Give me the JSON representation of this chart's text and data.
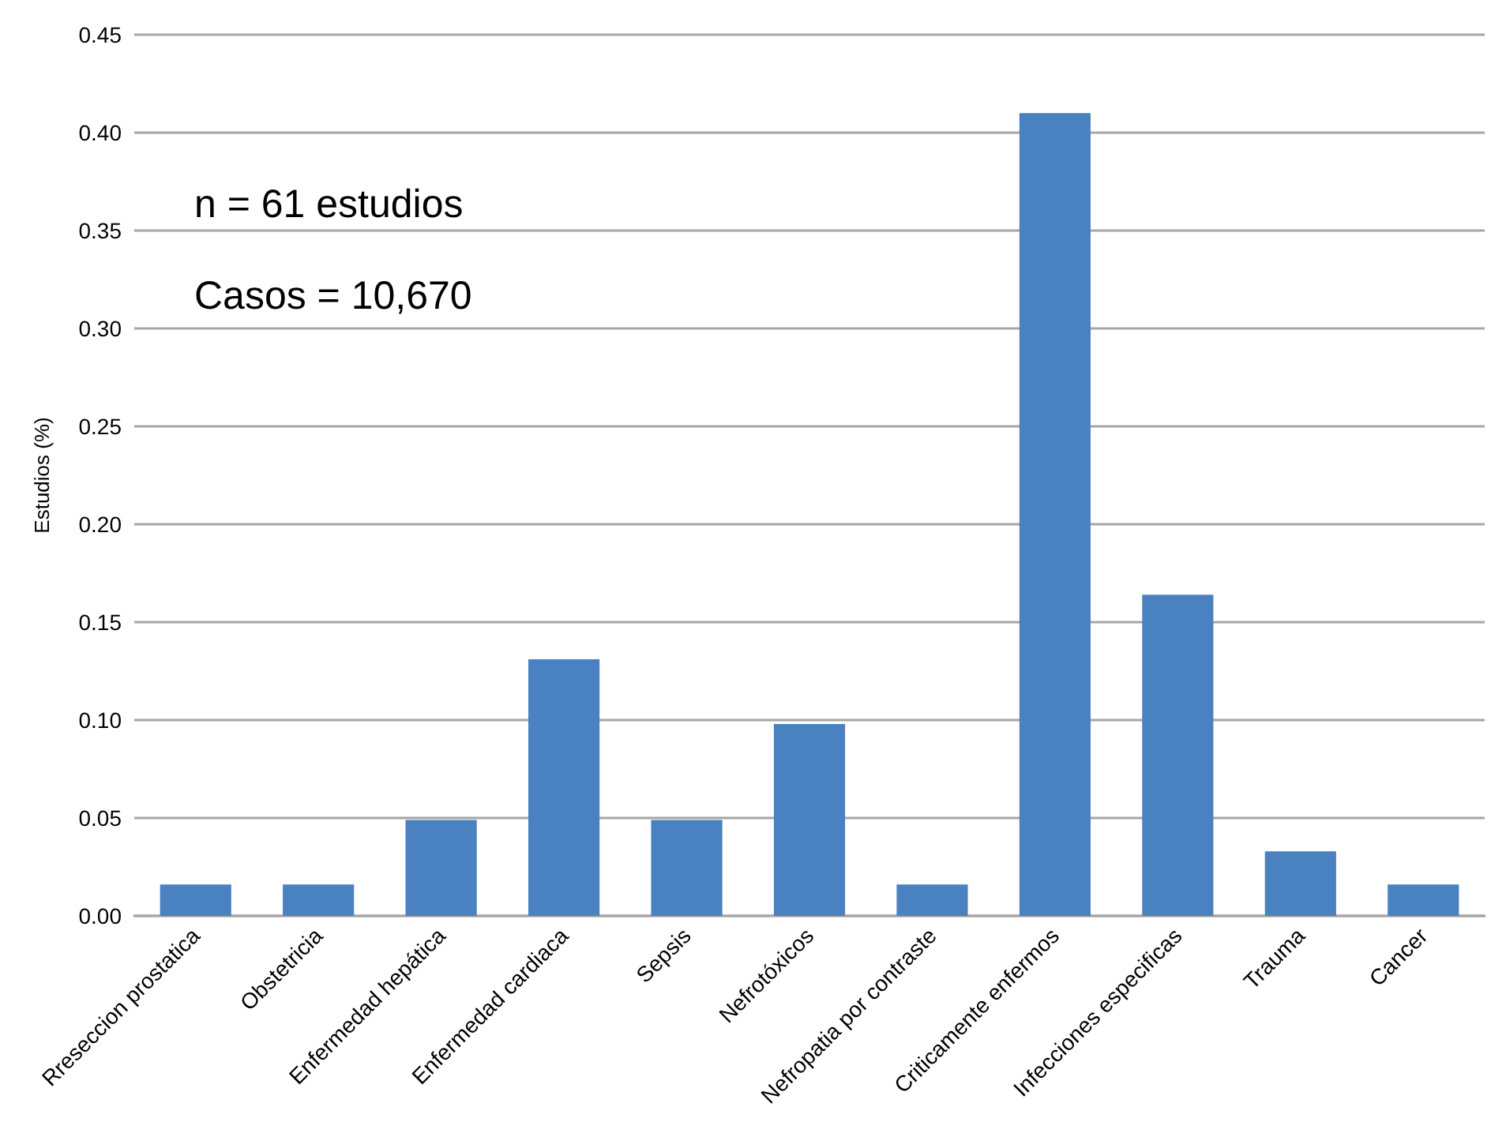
{
  "chart_data": {
    "type": "bar",
    "ylabel": "Estudios (%)",
    "categories": [
      "Rreseccion prostatica",
      "Obstetricia",
      "Enfermedad hepática",
      "Enfermedad cardiaca",
      "Sepsis",
      "Nefrotóxicos",
      "Nefropatia por contraste",
      "Criticamente enfermos",
      "Infecciones especificas",
      "Trauma",
      "Cancer"
    ],
    "values": [
      0.016,
      0.016,
      0.049,
      0.131,
      0.049,
      0.098,
      0.016,
      0.41,
      0.164,
      0.033,
      0.016
    ],
    "color": "#4a81c0",
    "ylim": [
      0,
      0.45
    ],
    "yticks": [
      {
        "value": 0,
        "label": "0.00"
      },
      0.05,
      {
        "value": 0.1,
        "label": "0.10"
      },
      0.15,
      {
        "value": 0.2,
        "label": "0.20"
      },
      0.25,
      {
        "value": 0.3,
        "label": "0.30"
      },
      0.35,
      {
        "value": 0.4,
        "label": "0.40"
      },
      0.45
    ],
    "grid": "y",
    "annotations": [
      "n = 61 estudios",
      "Casos = 10,670"
    ]
  }
}
